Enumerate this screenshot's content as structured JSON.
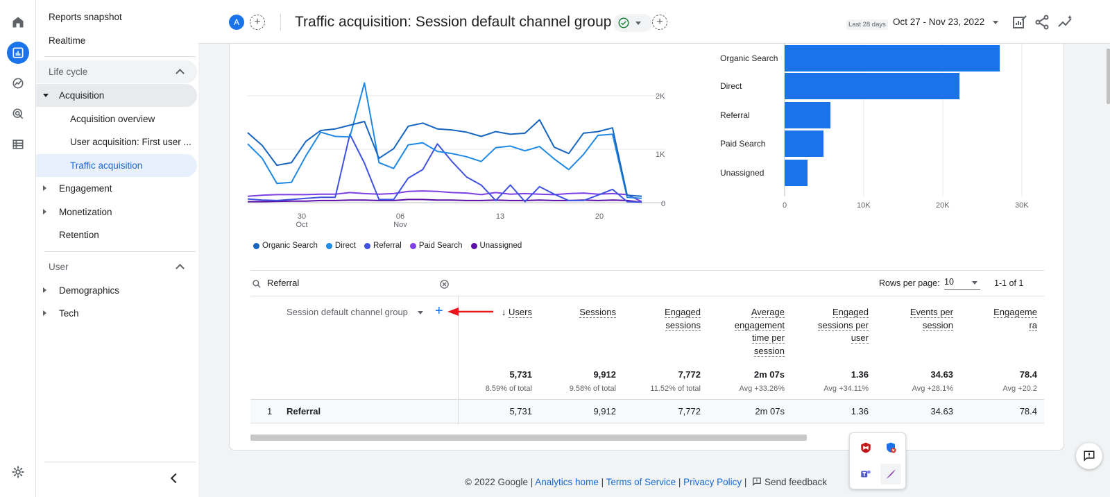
{
  "nav": {
    "reports_snapshot": "Reports snapshot",
    "realtime": "Realtime",
    "life_cycle": "Life cycle",
    "acquisition": "Acquisition",
    "acquisition_overview": "Acquisition overview",
    "user_acquisition": "User acquisition: First user ...",
    "traffic_acquisition": "Traffic acquisition",
    "engagement": "Engagement",
    "monetization": "Monetization",
    "retention": "Retention",
    "user": "User",
    "demographics": "Demographics",
    "tech": "Tech"
  },
  "header": {
    "avatar_letter": "A",
    "title": "Traffic acquisition: Session default channel group",
    "date_label": "Last 28 days",
    "date_range": "Oct 27 - Nov 23, 2022"
  },
  "line_chart": {
    "y_ticks": [
      "2K",
      "1K",
      "0"
    ],
    "x_ticks": [
      {
        "day": "30",
        "month": "Oct"
      },
      {
        "day": "06",
        "month": "Nov"
      },
      {
        "day": "13",
        "month": ""
      },
      {
        "day": "20",
        "month": ""
      }
    ],
    "legend": [
      "Organic Search",
      "Direct",
      "Referral",
      "Paid Search",
      "Unassigned"
    ]
  },
  "chart_data": [
    {
      "type": "line",
      "x": [
        "Oct 27",
        "Oct 28",
        "Oct 29",
        "Oct 30",
        "Oct 31",
        "Nov 1",
        "Nov 2",
        "Nov 3",
        "Nov 4",
        "Nov 5",
        "Nov 6",
        "Nov 7",
        "Nov 8",
        "Nov 9",
        "Nov 10",
        "Nov 11",
        "Nov 12",
        "Nov 13",
        "Nov 14",
        "Nov 15",
        "Nov 16",
        "Nov 17",
        "Nov 18",
        "Nov 19",
        "Nov 20",
        "Nov 21",
        "Nov 22",
        "Nov 23"
      ],
      "ylim": [
        0,
        2000
      ],
      "y_ticks": [
        0,
        1000,
        2000
      ],
      "series": [
        {
          "name": "Organic Search",
          "color": "#1565c0",
          "values": [
            1310,
            1070,
            700,
            750,
            1150,
            1350,
            1380,
            1450,
            1520,
            830,
            1010,
            1430,
            1490,
            1380,
            1360,
            1320,
            1240,
            1330,
            1280,
            1300,
            1550,
            1040,
            920,
            1300,
            1330,
            1400,
            140,
            120
          ]
        },
        {
          "name": "Direct",
          "color": "#1e88e5",
          "values": [
            1100,
            830,
            360,
            380,
            880,
            1320,
            1240,
            1230,
            2240,
            750,
            640,
            1080,
            1120,
            960,
            920,
            860,
            770,
            1030,
            1060,
            970,
            1050,
            820,
            620,
            900,
            1260,
            1280,
            100,
            80
          ]
        },
        {
          "name": "Referral",
          "color": "#3f51e0",
          "values": [
            70,
            50,
            40,
            60,
            80,
            100,
            100,
            1280,
            740,
            60,
            60,
            460,
            620,
            1100,
            770,
            480,
            330,
            40,
            330,
            20,
            300,
            160,
            40,
            40,
            140,
            250,
            20,
            10
          ]
        },
        {
          "name": "Paid Search",
          "color": "#7b3fe4",
          "values": [
            120,
            140,
            150,
            150,
            150,
            160,
            160,
            190,
            170,
            160,
            170,
            210,
            220,
            210,
            190,
            180,
            150,
            190,
            160,
            170,
            160,
            150,
            170,
            180,
            160,
            170,
            150,
            20
          ]
        },
        {
          "name": "Unassigned",
          "color": "#5b0fa8",
          "values": [
            20,
            20,
            25,
            30,
            30,
            40,
            40,
            50,
            50,
            40,
            40,
            60,
            60,
            50,
            50,
            40,
            40,
            50,
            40,
            40,
            50,
            40,
            40,
            50,
            40,
            50,
            40,
            10
          ]
        }
      ]
    },
    {
      "type": "bar",
      "orientation": "horizontal",
      "categories": [
        "Organic Search",
        "Direct",
        "Referral",
        "Paid Search",
        "Unassigned"
      ],
      "values": [
        27200,
        22100,
        5800,
        4900,
        2900
      ],
      "xlim": [
        0,
        30000
      ],
      "x_ticks": [
        "0",
        "10K",
        "20K",
        "30K"
      ]
    }
  ],
  "table": {
    "search_value": "Referral",
    "rows_per_page_label": "Rows per page:",
    "rows_per_page": "10",
    "pager": "1-1 of 1",
    "dimension_header": "Session default channel group",
    "columns": [
      {
        "lines": [
          "Users"
        ],
        "total": "5,731",
        "sub": "8.59% of total",
        "row": "5,731"
      },
      {
        "lines": [
          "Sessions"
        ],
        "total": "9,912",
        "sub": "9.58% of total",
        "row": "9,912"
      },
      {
        "lines": [
          "Engaged",
          "sessions"
        ],
        "total": "7,772",
        "sub": "11.52% of total",
        "row": "7,772"
      },
      {
        "lines": [
          "Average",
          "engagement",
          "time per",
          "session"
        ],
        "total": "2m 07s",
        "sub": "Avg +33.26%",
        "row": "2m 07s"
      },
      {
        "lines": [
          "Engaged",
          "sessions per",
          "user"
        ],
        "total": "1.36",
        "sub": "Avg +34.11%",
        "row": "1.36"
      },
      {
        "lines": [
          "Events per",
          "session"
        ],
        "total": "34.63",
        "sub": "Avg +28.1%",
        "row": "34.63"
      },
      {
        "lines": [
          "Engageme",
          "ra"
        ],
        "total": "78.4",
        "sub": "Avg +20.2",
        "row": "78.4"
      }
    ],
    "row_index": "1",
    "row_name": "Referral"
  },
  "footer": {
    "copyright": "© 2022 Google",
    "analytics_home": "Analytics home",
    "terms": "Terms of Service",
    "privacy": "Privacy Policy",
    "feedback": "Send feedback"
  }
}
